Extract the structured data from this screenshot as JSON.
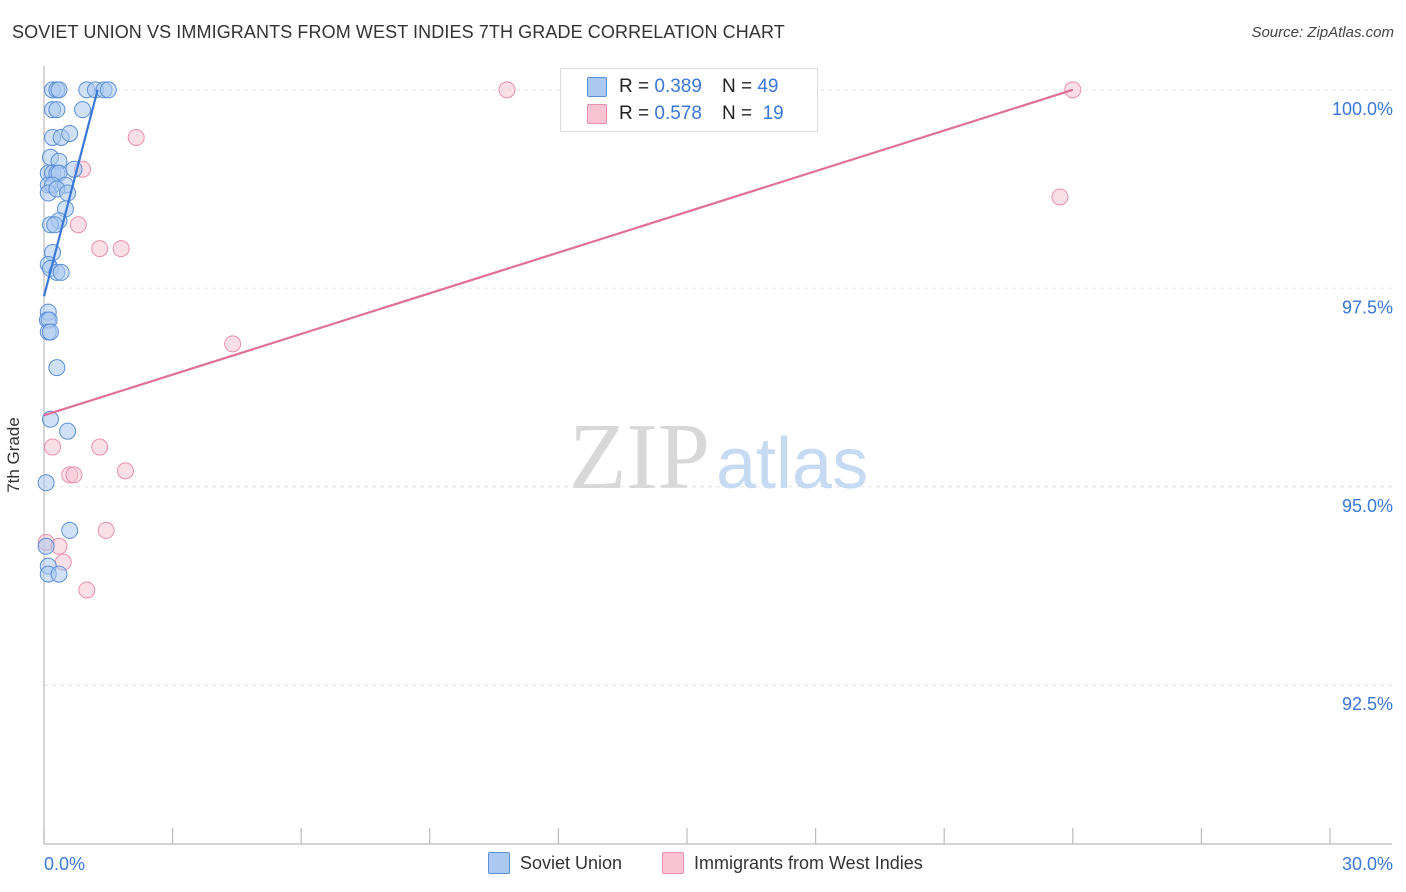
{
  "title": "SOVIET UNION VS IMMIGRANTS FROM WEST INDIES 7TH GRADE CORRELATION CHART",
  "source": "Source: ZipAtlas.com",
  "watermark": {
    "zip": "ZIP",
    "atlas": "atlas"
  },
  "legend": {
    "rows": [
      {
        "r_label": "R =",
        "r_value": "0.389",
        "n_label": "N =",
        "n_value": "49"
      },
      {
        "r_label": "R =",
        "r_value": "0.578",
        "n_label": "N =",
        "n_value": "19"
      }
    ]
  },
  "colors": {
    "blue_fill": "#aac8f0",
    "blue_stroke": "#5b8fd8",
    "blue_line": "#3a78d8",
    "pink_fill": "#f8c4d4",
    "pink_stroke": "#e890ab",
    "pink_line": "#e07098",
    "tick_label": "#3a78d8",
    "grid": "#e4e4e4"
  },
  "chart_data": {
    "type": "scatter",
    "title": "SOVIET UNION VS IMMIGRANTS FROM WEST INDIES 7TH GRADE CORRELATION CHART",
    "xlabel": "",
    "ylabel": "7th Grade",
    "xlim": [
      0.0,
      30.0
    ],
    "ylim": [
      90.5,
      100.3
    ],
    "x_tick_labels": [
      "0.0%",
      "30.0%"
    ],
    "y_ticks": [
      92.5,
      95.0,
      97.5,
      100.0
    ],
    "y_tick_labels": [
      "92.5%",
      "95.0%",
      "97.5%",
      "100.0%"
    ],
    "grid": true,
    "legend_position": "top-center",
    "series": [
      {
        "name": "Soviet Union",
        "color": "#5b8fd8",
        "r": 0.389,
        "n": 49,
        "points": [
          [
            0.2,
            100.0
          ],
          [
            0.3,
            100.0
          ],
          [
            0.35,
            100.0
          ],
          [
            1.0,
            100.0
          ],
          [
            1.2,
            100.0
          ],
          [
            1.4,
            100.0
          ],
          [
            1.5,
            100.0
          ],
          [
            0.2,
            99.75
          ],
          [
            0.3,
            99.75
          ],
          [
            0.9,
            99.75
          ],
          [
            0.2,
            99.4
          ],
          [
            0.4,
            99.4
          ],
          [
            0.6,
            99.45
          ],
          [
            0.15,
            99.15
          ],
          [
            0.35,
            99.1
          ],
          [
            0.1,
            98.95
          ],
          [
            0.2,
            98.95
          ],
          [
            0.3,
            98.95
          ],
          [
            0.35,
            98.95
          ],
          [
            0.7,
            99.0
          ],
          [
            0.1,
            98.8
          ],
          [
            0.2,
            98.8
          ],
          [
            0.5,
            98.8
          ],
          [
            0.1,
            98.7
          ],
          [
            0.3,
            98.75
          ],
          [
            0.55,
            98.7
          ],
          [
            0.5,
            98.5
          ],
          [
            0.35,
            98.35
          ],
          [
            0.15,
            98.3
          ],
          [
            0.25,
            98.3
          ],
          [
            0.2,
            97.95
          ],
          [
            0.1,
            97.8
          ],
          [
            0.15,
            97.75
          ],
          [
            0.3,
            97.7
          ],
          [
            0.4,
            97.7
          ],
          [
            0.1,
            97.2
          ],
          [
            0.08,
            97.1
          ],
          [
            0.12,
            97.1
          ],
          [
            0.1,
            96.95
          ],
          [
            0.15,
            96.95
          ],
          [
            0.3,
            96.5
          ],
          [
            0.15,
            95.85
          ],
          [
            0.55,
            95.7
          ],
          [
            0.05,
            95.05
          ],
          [
            0.6,
            94.45
          ],
          [
            0.05,
            94.25
          ],
          [
            0.1,
            94.0
          ],
          [
            0.1,
            93.9
          ],
          [
            0.35,
            93.9
          ]
        ],
        "trend_line": {
          "x": [
            0.0,
            1.25
          ],
          "y": [
            97.4,
            100.0
          ]
        }
      },
      {
        "name": "Immigrants from West Indies",
        "color": "#e890ab",
        "r": 0.578,
        "n": 19,
        "points": [
          [
            10.8,
            100.0
          ],
          [
            24.0,
            100.0
          ],
          [
            2.15,
            99.4
          ],
          [
            0.9,
            99.0
          ],
          [
            23.7,
            98.65
          ],
          [
            0.8,
            98.3
          ],
          [
            1.3,
            98.0
          ],
          [
            1.8,
            98.0
          ],
          [
            4.4,
            96.8
          ],
          [
            0.2,
            95.5
          ],
          [
            1.3,
            95.5
          ],
          [
            0.6,
            95.15
          ],
          [
            0.7,
            95.15
          ],
          [
            1.9,
            95.2
          ],
          [
            0.05,
            94.3
          ],
          [
            0.35,
            94.25
          ],
          [
            1.45,
            94.45
          ],
          [
            0.45,
            94.05
          ],
          [
            1.0,
            93.7
          ]
        ],
        "trend_line": {
          "x": [
            0.0,
            24.0
          ],
          "y": [
            95.9,
            100.0
          ]
        }
      }
    ]
  },
  "bottom_legend": [
    {
      "label": "Soviet Union"
    },
    {
      "label": "Immigrants from West Indies"
    }
  ]
}
